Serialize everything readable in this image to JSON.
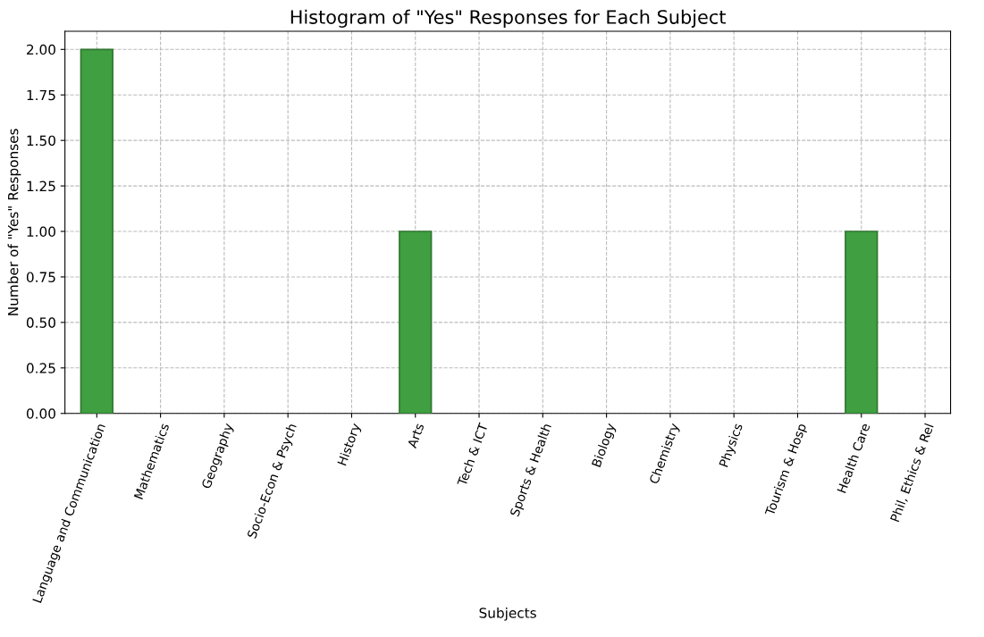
{
  "chart_data": {
    "type": "bar",
    "title": "Histogram of \"Yes\" Responses for Each Subject",
    "xlabel": "Subjects",
    "ylabel": "Number of \"Yes\" Responses",
    "categories": [
      "Language and Communication",
      "Mathematics",
      "Geography",
      "Socio-Econ & Psych",
      "History",
      "Arts",
      "Tech & ICT",
      "Sports & Health",
      "Biology",
      "Chemistry",
      "Physics",
      "Tourism & Hosp",
      "Health Care",
      "Phil, Ethics & Rel"
    ],
    "values": [
      2,
      0,
      0,
      0,
      0,
      1,
      0,
      0,
      0,
      0,
      0,
      0,
      1,
      0
    ],
    "color": "#409f40",
    "ylim": [
      0,
      2.1
    ],
    "yticks": [
      {
        "value": 0,
        "label": "0.00"
      },
      {
        "value": 0.25,
        "label": "0.25"
      },
      {
        "value": 0.5,
        "label": "0.50"
      },
      {
        "value": 0.75,
        "label": "0.75"
      },
      {
        "value": 1,
        "label": "1.00"
      },
      {
        "value": 1.25,
        "label": "1.25"
      },
      {
        "value": 1.5,
        "label": "1.50"
      },
      {
        "value": 1.75,
        "label": "1.75"
      },
      {
        "value": 2,
        "label": "2.00"
      }
    ],
    "grid": true
  }
}
